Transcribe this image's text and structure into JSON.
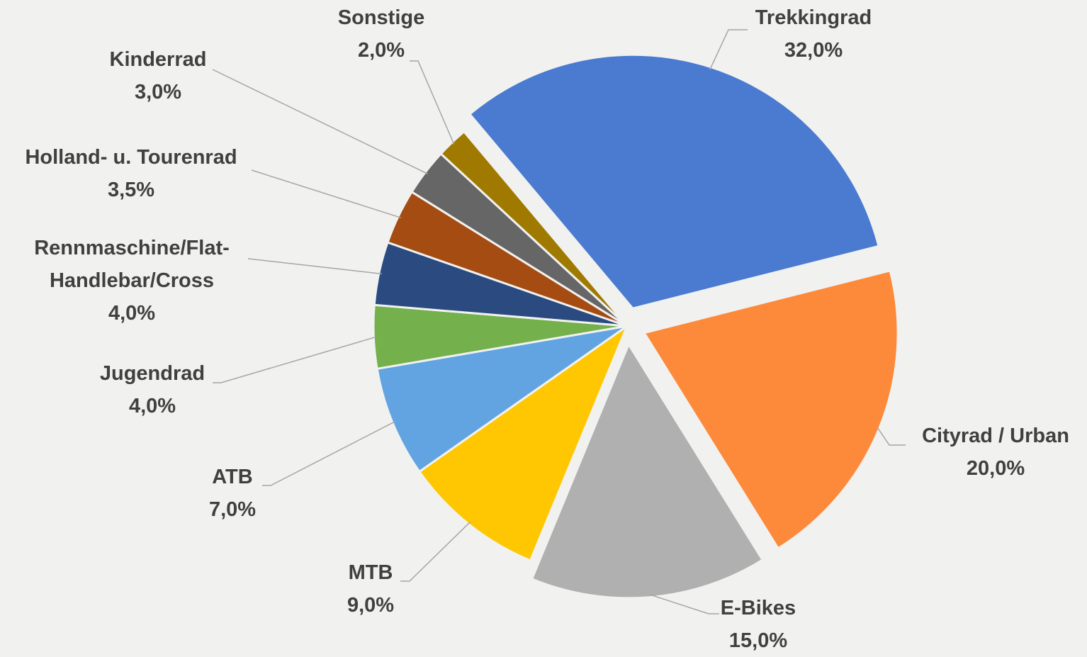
{
  "chart_data": {
    "type": "pie",
    "categories": [
      "Trekkingrad",
      "Cityrad / Urban",
      "E-Bikes",
      "MTB",
      "ATB",
      "Jugendrad",
      "Rennmaschine/Flat-Handlebar/Cross",
      "Holland- u. Tourenrad",
      "Kinderrad",
      "Sonstige"
    ],
    "values": [
      32,
      20,
      15,
      9,
      7,
      4,
      4,
      3.5,
      3,
      2
    ],
    "value_labels": [
      "32,0%",
      "20,0%",
      "15,0%",
      "9,0%",
      "7,0%",
      "4,0%",
      "4,0%",
      "3,5%",
      "3,0%",
      "2,0%"
    ],
    "colors": [
      "#4a7bd0",
      "#fd8a3b",
      "#b0b0b0",
      "#ffc701",
      "#62a4e1",
      "#74b04b",
      "#2a4a80",
      "#a54c12",
      "#666666",
      "#a07a00"
    ]
  }
}
